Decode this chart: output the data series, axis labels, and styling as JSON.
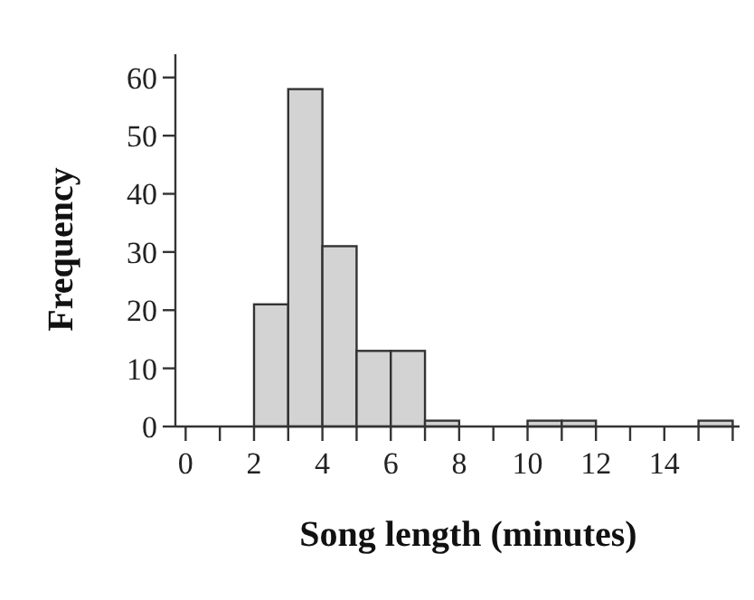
{
  "chart_data": {
    "type": "histogram",
    "xlabel": "Song length (minutes)",
    "ylabel": "Frequency",
    "color": "#d3d3d3",
    "bins": [
      0,
      1,
      2,
      3,
      4,
      5,
      6,
      7,
      8,
      9,
      10,
      11,
      12,
      13,
      14,
      15,
      16
    ],
    "values": [
      0,
      0,
      21,
      58,
      31,
      13,
      13,
      1,
      0,
      0,
      1,
      1,
      0,
      0,
      0,
      1
    ],
    "xlim": [
      -0.3,
      16.2
    ],
    "ylim": [
      0,
      64
    ],
    "xticks": [
      0,
      {
        "value": 1,
        "label": null
      },
      2,
      {
        "value": 3,
        "label": null
      },
      4,
      {
        "value": 5,
        "label": null
      },
      6,
      {
        "value": 7,
        "label": null
      },
      8,
      {
        "value": 9,
        "label": null
      },
      10,
      {
        "value": 11,
        "label": null
      },
      12,
      {
        "value": 13,
        "label": null
      },
      14,
      {
        "value": 15,
        "label": null
      },
      {
        "value": 16,
        "label": null
      }
    ],
    "yticks": [
      0,
      10,
      20,
      30,
      40,
      50,
      60
    ]
  }
}
